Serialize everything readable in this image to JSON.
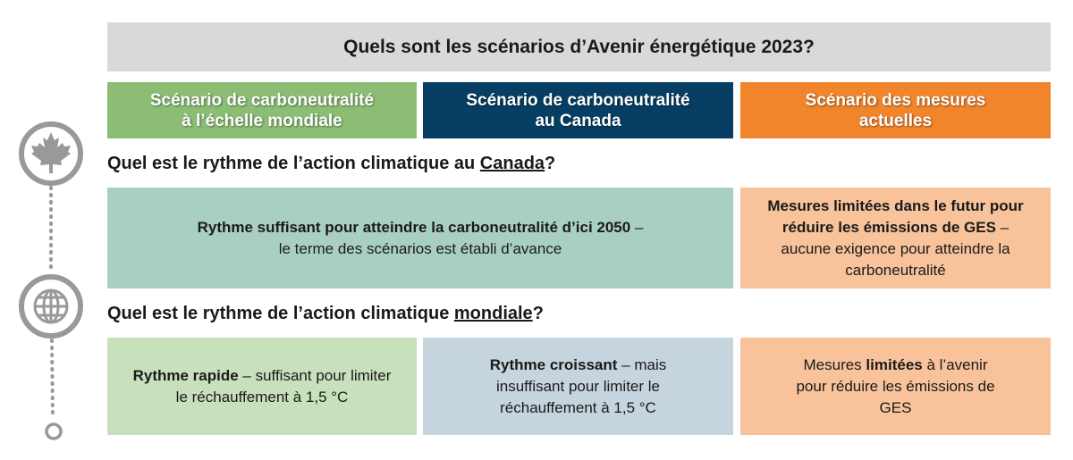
{
  "title": "Quels sont les scénarios d’Avenir énergétique 2023?",
  "headers": [
    {
      "lines": [
        "Scénario de carboneutralité",
        "à  l’échelle mondiale"
      ],
      "color": "#8bbd74"
    },
    {
      "lines": [
        "Scénario de carboneutralité",
        "au Canada"
      ],
      "color": "#063f63"
    },
    {
      "lines": [
        "Scénario des mesures",
        "actuelles"
      ],
      "color": "#f0852c"
    }
  ],
  "questions": [
    {
      "before": "Quel est le rythme de l’action climatique au ",
      "underlined": "Canada",
      "after": "?"
    },
    {
      "before": "Quel est le rythme de l’action climatique ",
      "underlined": "mondiale",
      "after": "?"
    }
  ],
  "rows": [
    [
      {
        "color": "#a9cfc4",
        "segments": [
          {
            "text": "Rythme suffisant pour atteindre la carboneutralité d’ici 2050",
            "bold": true
          },
          {
            "text": " – le terme des scénarios est établi d’avance",
            "bold": false
          }
        ]
      },
      {
        "color": "#f8c39b",
        "segments": [
          {
            "text": "Mesures limitées dans le futur pour réduire les émissions de GES",
            "bold": true
          },
          {
            "text": " – aucune exigence pour atteindre la carboneutralité",
            "bold": false
          }
        ]
      }
    ],
    [
      {
        "color": "#c9e0bc",
        "segments": [
          {
            "text": "Rythme rapide",
            "bold": true
          },
          {
            "text": " – suffisant pour limiter le réchauffement à 1,5 °C",
            "bold": false
          }
        ]
      },
      {
        "color": "#c6d4dd",
        "segments": [
          {
            "text": "Rythme croissant",
            "bold": true
          },
          {
            "text": " – mais insuffisant pour limiter le réchauffement à 1,5 °C",
            "bold": false
          }
        ]
      },
      {
        "color": "#f8c39b",
        "segments": [
          {
            "text": "Mesures ",
            "bold": false
          },
          {
            "text": "limitées",
            "bold": true
          },
          {
            "text": " à l’avenir pour réduire les émissions de GES",
            "bold": false
          }
        ]
      }
    ]
  ]
}
